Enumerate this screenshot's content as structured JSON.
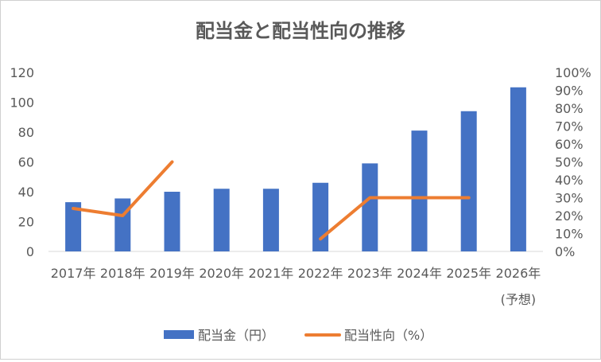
{
  "chart_data": {
    "type": "bar",
    "title": "配当金と配当性向の推移",
    "categories": [
      "2017年",
      "2018年",
      "2019年",
      "2020年",
      "2021年",
      "2022年",
      "2023年",
      "2024年",
      "2025年",
      "2026年"
    ],
    "category_note": "(予想)",
    "series": [
      {
        "name": "配当金（円）",
        "type": "bar",
        "axis": "left",
        "color": "#4472C4",
        "values": [
          33,
          35.5,
          40,
          42,
          42,
          46,
          59,
          81,
          94,
          110
        ]
      },
      {
        "name": "配当性向（%）",
        "type": "line",
        "axis": "right",
        "color": "#ED7D31",
        "values": [
          24,
          20,
          50,
          null,
          null,
          7,
          30,
          30,
          30,
          null
        ]
      }
    ],
    "left_axis": {
      "min": 0,
      "max": 120,
      "ticks": [
        "0",
        "20",
        "40",
        "60",
        "80",
        "100",
        "120"
      ]
    },
    "right_axis": {
      "min": 0,
      "max": 100,
      "ticks": [
        "0%",
        "10%",
        "20%",
        "30%",
        "40%",
        "50%",
        "60%",
        "70%",
        "80%",
        "90%",
        "100%"
      ]
    },
    "grid": false,
    "legend_position": "bottom"
  }
}
